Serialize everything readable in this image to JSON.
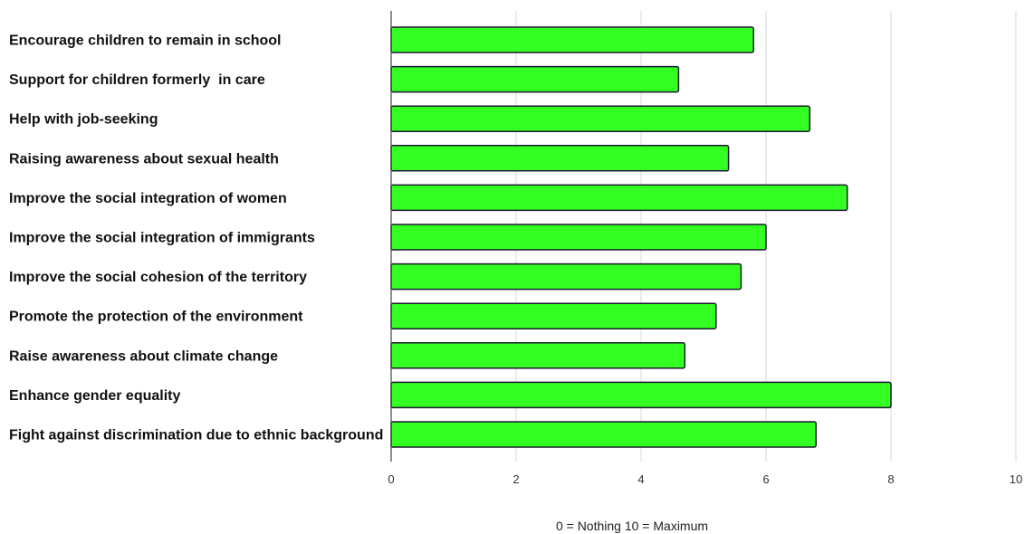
{
  "chart_data": {
    "type": "bar",
    "orientation": "horizontal",
    "categories": [
      "Encourage children to remain in school",
      "Support for children formerly  in care",
      "Help with job-seeking",
      "Raising awareness about sexual health",
      "Improve the social integration of women",
      "Improve the social integration of immigrants",
      "Improve the social cohesion of the territory",
      "Promote the protection of the environment",
      "Raise awareness about climate change",
      "Enhance gender equality",
      "Fight against discrimination due to ethnic background"
    ],
    "values": [
      5.8,
      4.6,
      6.7,
      5.4,
      7.3,
      6.0,
      5.6,
      5.2,
      4.7,
      8.0,
      6.8
    ],
    "xlim": [
      0,
      10
    ],
    "xticks": [
      0,
      2,
      4,
      6,
      8,
      10
    ],
    "xlabel": "0 = Nothing  10 = Maximum",
    "grid": true,
    "colors": {
      "bar_fill": "#33ff22",
      "bar_stroke": "#1a1a2e",
      "grid": "#d9d9d9",
      "axis": "#444444"
    }
  }
}
